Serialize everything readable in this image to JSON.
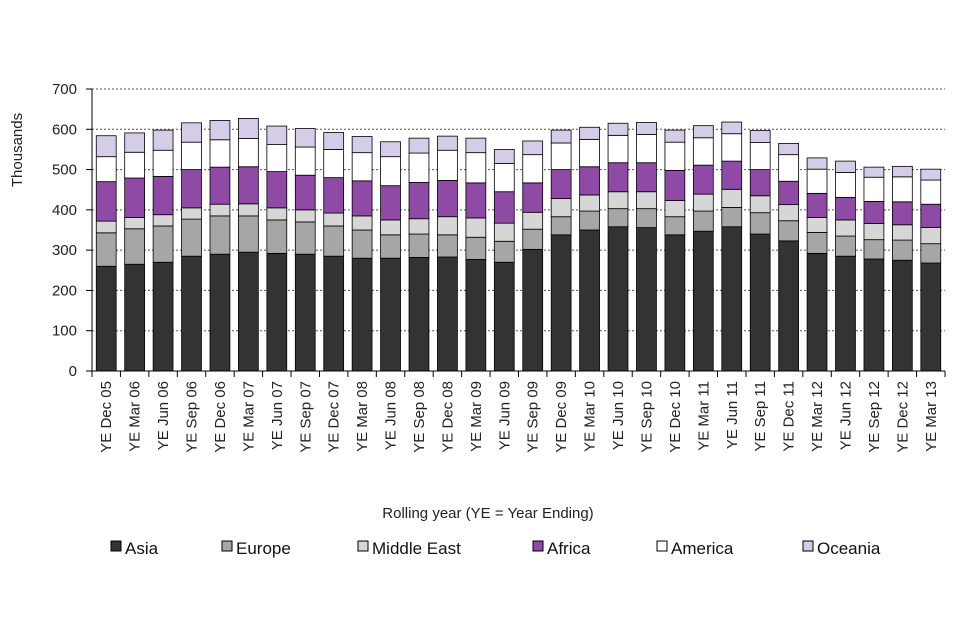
{
  "chart_data": {
    "type": "bar",
    "stacked": true,
    "title": "",
    "xlabel": "Rolling year (YE = Year Ending)",
    "ylabel": "Thousands",
    "ylim": [
      0,
      700
    ],
    "yticks": [
      0,
      100,
      200,
      300,
      400,
      500,
      600,
      700
    ],
    "grid": "horizontal dotted",
    "legend_position": "bottom",
    "categories": [
      "YE Dec 05",
      "YE Mar 06",
      "YE Jun 06",
      "YE Sep 06",
      "YE Dec 06",
      "YE Mar 07",
      "YE Jun 07",
      "YE Sep 07",
      "YE Dec 07",
      "YE Mar 08",
      "YE Jun 08",
      "YE Sep 08",
      "YE Dec 08",
      "YE Mar 09",
      "YE Jun 09",
      "YE Sep 09",
      "YE Dec 09",
      "YE Mar 10",
      "YE Jun 10",
      "YE Sep 10",
      "YE Dec 10",
      "YE Mar 11",
      "YE Jun 11",
      "YE Sep 11",
      "YE Dec 11",
      "YE Mar 12",
      "YE Jun 12",
      "YE Sep 12",
      "YE Dec 12",
      "YE Mar 13"
    ],
    "series": [
      {
        "name": "Asia",
        "color": "#333333",
        "values": [
          260,
          265,
          270,
          285,
          290,
          295,
          292,
          290,
          285,
          280,
          280,
          282,
          283,
          277,
          270,
          302,
          338,
          350,
          358,
          356,
          338,
          347,
          358,
          340,
          323,
          292,
          285,
          278,
          275,
          268
        ]
      },
      {
        "name": "Europe",
        "color": "#a6a6a6",
        "values": [
          83,
          88,
          90,
          92,
          95,
          90,
          83,
          80,
          75,
          70,
          58,
          58,
          55,
          55,
          52,
          50,
          45,
          47,
          45,
          47,
          45,
          50,
          48,
          53,
          50,
          52,
          50,
          48,
          50,
          48
        ]
      },
      {
        "name": "Middle East",
        "color": "#d6d6d6",
        "values": [
          29,
          28,
          28,
          28,
          29,
          30,
          30,
          30,
          32,
          35,
          37,
          38,
          45,
          48,
          45,
          42,
          45,
          40,
          42,
          42,
          40,
          42,
          45,
          42,
          40,
          37,
          40,
          40,
          38,
          40
        ]
      },
      {
        "name": "Africa",
        "color": "#8e4aa5",
        "values": [
          98,
          98,
          95,
          95,
          92,
          92,
          90,
          86,
          88,
          87,
          85,
          90,
          90,
          87,
          78,
          73,
          72,
          70,
          72,
          72,
          75,
          72,
          70,
          65,
          58,
          60,
          56,
          55,
          57,
          58
        ]
      },
      {
        "name": "America",
        "color": "#ffffff",
        "values": [
          62,
          64,
          65,
          68,
          68,
          70,
          67,
          70,
          70,
          70,
          72,
          73,
          75,
          75,
          70,
          70,
          66,
          68,
          68,
          70,
          70,
          68,
          68,
          67,
          66,
          60,
          62,
          60,
          62,
          60
        ]
      },
      {
        "name": "Oceania",
        "color": "#d5cde8",
        "values": [
          52,
          48,
          50,
          48,
          48,
          50,
          46,
          46,
          42,
          40,
          37,
          37,
          35,
          36,
          35,
          34,
          32,
          30,
          30,
          30,
          30,
          30,
          29,
          30,
          28,
          28,
          28,
          25,
          26,
          27
        ]
      }
    ]
  }
}
